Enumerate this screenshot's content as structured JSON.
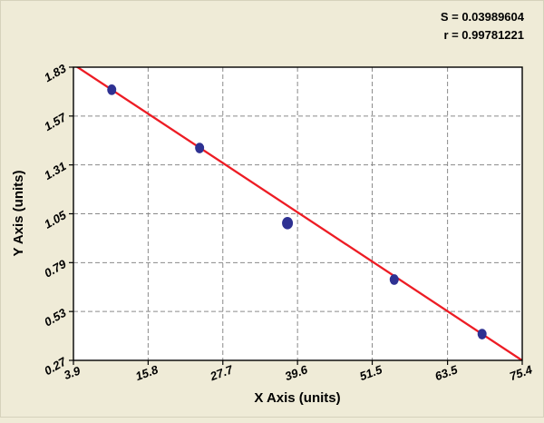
{
  "chart_data": {
    "type": "scatter",
    "title": "",
    "xlabel": "X Axis (units)",
    "ylabel": "Y Axis (units)",
    "x_ticks": [
      "3.9",
      "15.8",
      "27.7",
      "39.6",
      "51.5",
      "63.5",
      "75.4"
    ],
    "y_ticks": [
      "0.27",
      "0.53",
      "0.79",
      "1.05",
      "1.31",
      "1.57",
      "1.83"
    ],
    "xlim": [
      3.9,
      75.4
    ],
    "ylim": [
      0.27,
      1.83
    ],
    "grid": true,
    "legend": "none",
    "points": [
      {
        "x": 10.0,
        "y": 1.71,
        "r": 5
      },
      {
        "x": 24.0,
        "y": 1.4,
        "r": 5
      },
      {
        "x": 38.0,
        "y": 1.0,
        "r": 6
      },
      {
        "x": 55.0,
        "y": 0.7,
        "r": 5
      },
      {
        "x": 69.0,
        "y": 0.41,
        "r": 5
      }
    ],
    "fit_line": {
      "slope": -0.02203,
      "intercept": 1.9303
    },
    "annotations": {
      "s": "S = 0.03989604",
      "r": "r = 0.99781221"
    },
    "colors": {
      "background": "#efebd7",
      "plot_bg": "#ffffff",
      "grid": "#8a8a8a",
      "line": "#ed1c24",
      "point": "#2e3192",
      "border": "#000000"
    }
  }
}
